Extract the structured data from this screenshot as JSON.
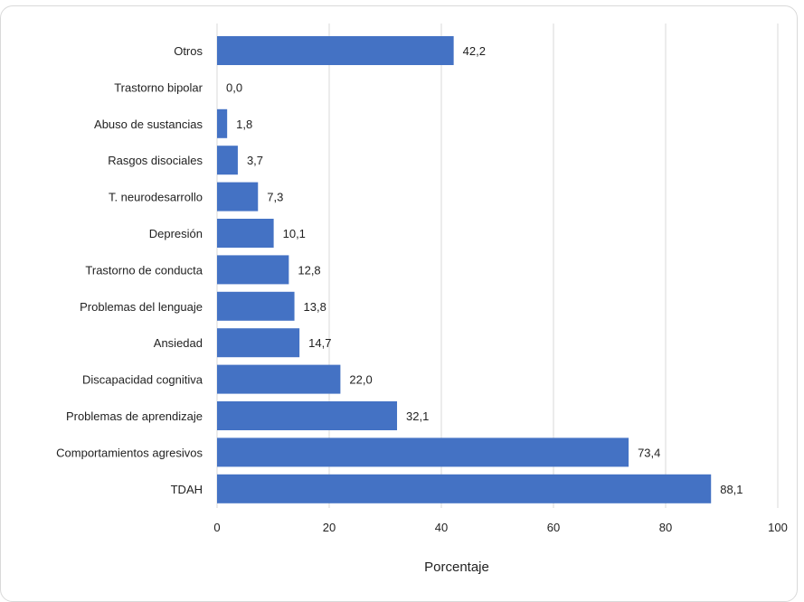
{
  "chart_data": {
    "type": "bar",
    "orientation": "horizontal",
    "categories": [
      "Otros",
      "Trastorno bipolar",
      "Abuso de sustancias",
      "Rasgos disociales",
      "T. neurodesarrollo",
      "Depresión",
      "Trastorno de conducta",
      "Problemas del lenguaje",
      "Ansiedad",
      "Discapacidad cognitiva",
      "Problemas de aprendizaje",
      "Comportamientos agresivos",
      "TDAH"
    ],
    "values": [
      42.2,
      0.0,
      1.8,
      3.7,
      7.3,
      10.1,
      12.8,
      13.8,
      14.7,
      22.0,
      32.1,
      73.4,
      88.1
    ],
    "value_labels": [
      "42,2",
      "0,0",
      "1,8",
      "3,7",
      "7,3",
      "10,1",
      "12,8",
      "13,8",
      "14,7",
      "22,0",
      "32,1",
      "73,4",
      "88,1"
    ],
    "xlabel": "Porcentaje",
    "ylabel": "",
    "xlim": [
      0,
      100
    ],
    "xticks": [
      0,
      20,
      40,
      60,
      80,
      100
    ],
    "xtick_labels": [
      "0",
      "20",
      "40",
      "60",
      "80",
      "100"
    ],
    "grid": "vertical",
    "legend": "none",
    "bar_color": "#4472C4",
    "grid_color": "#d9d9d9"
  }
}
